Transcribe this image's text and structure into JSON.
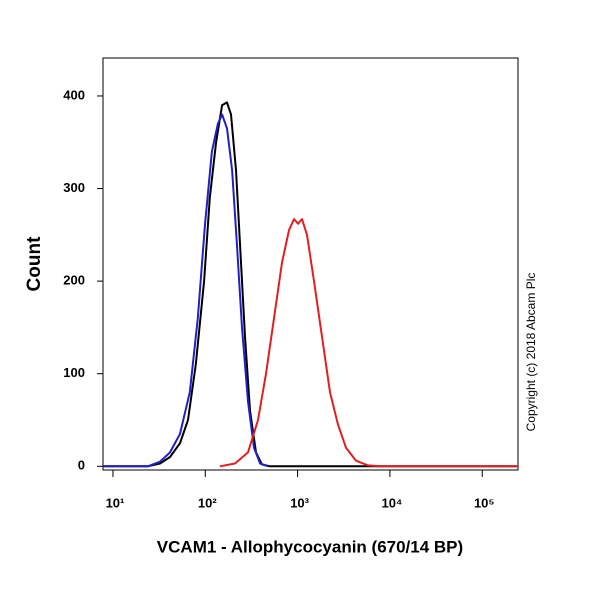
{
  "chart_data": {
    "type": "line",
    "xlabel": "VCAM1 - Allophycocyanin (670/14 BP)",
    "ylabel": "Count",
    "annotation": "Copyright (c) 2018 Abcam Plc",
    "xscale": "log",
    "xlim": [
      7.8,
      244000
    ],
    "ylim": [
      -4,
      441
    ],
    "xticks": [
      {
        "value": 10,
        "label": "10¹"
      },
      {
        "value": 100,
        "label": "10²"
      },
      {
        "value": 1000,
        "label": "10³"
      },
      {
        "value": 10000,
        "label": "10⁴"
      },
      {
        "value": 100000,
        "label": "10⁵"
      }
    ],
    "yticks": [
      0,
      100,
      200,
      300,
      400
    ],
    "series": [
      {
        "color": "#000000",
        "x": [
          7.8,
          23.9,
          32.3,
          41.5,
          53.2,
          65,
          79,
          97,
          112,
          131,
          152,
          172,
          190,
          215,
          238,
          269,
          305,
          354,
          411,
          502,
          244000
        ],
        "values": [
          0,
          0,
          3,
          10,
          25,
          50,
          110,
          200,
          290,
          350,
          390,
          393,
          380,
          320,
          240,
          140,
          60,
          15,
          2,
          0,
          0
        ]
      },
      {
        "color": "#2020c8",
        "x": [
          7.8,
          23.9,
          32.3,
          41.5,
          53.2,
          68,
          83,
          99,
          118,
          137,
          152,
          172,
          195,
          220,
          250,
          290,
          337,
          392,
          478
        ],
        "values": [
          0,
          0,
          5,
          15,
          35,
          80,
          160,
          260,
          340,
          370,
          380,
          365,
          320,
          240,
          150,
          70,
          20,
          3,
          0
        ]
      },
      {
        "color": "#e02020",
        "x": [
          144,
          210,
          290,
          372,
          455,
          555,
          678,
          807,
          915,
          1010,
          1116,
          1265,
          1506,
          1838,
          2244,
          2740,
          3345,
          4293,
          5796,
          7820,
          244000
        ],
        "values": [
          0,
          3,
          15,
          50,
          100,
          160,
          220,
          255,
          267,
          262,
          267,
          250,
          200,
          140,
          80,
          45,
          20,
          6,
          1,
          0,
          0
        ]
      }
    ]
  }
}
